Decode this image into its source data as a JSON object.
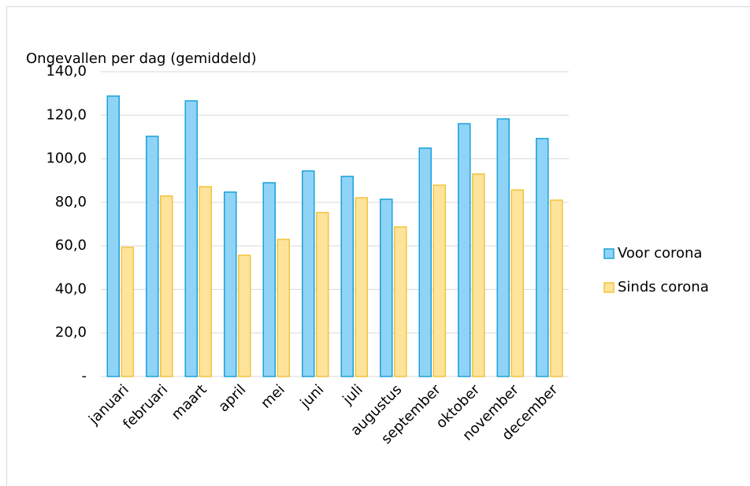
{
  "chart_data": {
    "type": "bar",
    "title": "Ongevallen per dag (gemiddeld)",
    "categories": [
      "januari",
      "februari",
      "maart",
      "april",
      "mei",
      "juni",
      "juli",
      "augustus",
      "september",
      "oktober",
      "november",
      "december"
    ],
    "series": [
      {
        "name": "Voor corona",
        "color": "#8fd4f6",
        "values": [
          128.8,
          110.3,
          126.6,
          84.7,
          89.0,
          94.4,
          91.9,
          81.4,
          104.9,
          116.1,
          118.3,
          109.3
        ]
      },
      {
        "name": "Sinds corona",
        "color": "#fee39b",
        "values": [
          59.3,
          82.9,
          87.2,
          55.7,
          63.0,
          75.3,
          82.1,
          68.7,
          87.9,
          93.0,
          85.7,
          81.0
        ]
      }
    ],
    "ylim": [
      0,
      140
    ],
    "yticks": [
      {
        "value": 0,
        "label": "-"
      },
      {
        "value": 20,
        "label": "20,0"
      },
      {
        "value": 40,
        "label": "40,0"
      },
      {
        "value": 60,
        "label": "60,0"
      },
      {
        "value": 80,
        "label": "80,0"
      },
      {
        "value": 100,
        "label": "100,0"
      },
      {
        "value": 120,
        "label": "120,0"
      },
      {
        "value": 140,
        "label": "140,0"
      }
    ],
    "grid": true,
    "legend": "right"
  }
}
